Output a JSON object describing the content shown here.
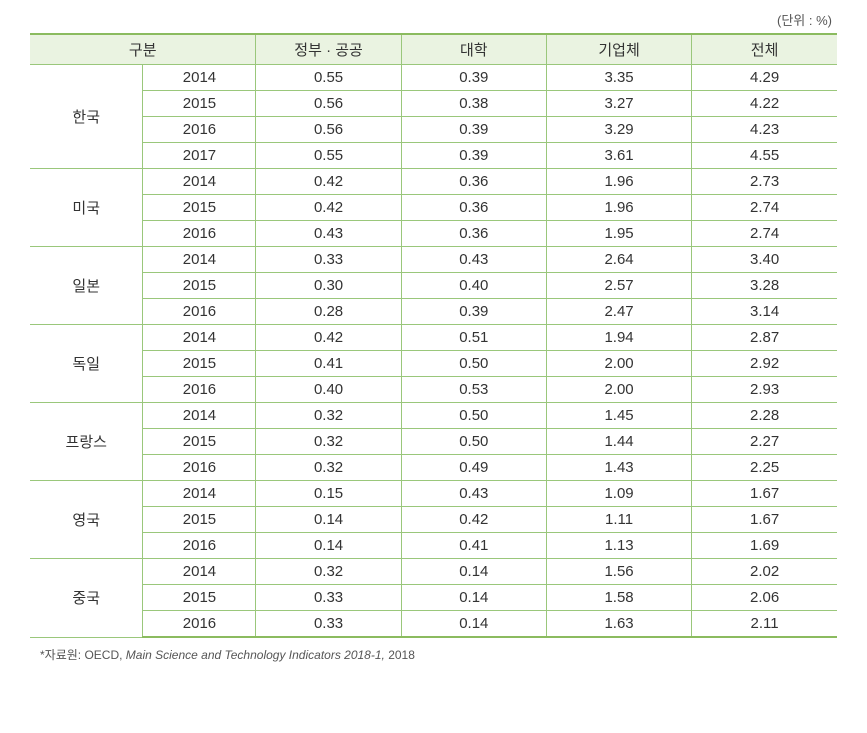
{
  "unit_label": "(단위 : %)",
  "header": {
    "category": "구분",
    "gov_public": "정부 · 공공",
    "university": "대학",
    "enterprise": "기업체",
    "total": "전체"
  },
  "countries": [
    {
      "name": "한국",
      "rows": [
        {
          "year": "2014",
          "gov": "0.55",
          "uni": "0.39",
          "ent": "3.35",
          "tot": "4.29"
        },
        {
          "year": "2015",
          "gov": "0.56",
          "uni": "0.38",
          "ent": "3.27",
          "tot": "4.22"
        },
        {
          "year": "2016",
          "gov": "0.56",
          "uni": "0.39",
          "ent": "3.29",
          "tot": "4.23"
        },
        {
          "year": "2017",
          "gov": "0.55",
          "uni": "0.39",
          "ent": "3.61",
          "tot": "4.55"
        }
      ]
    },
    {
      "name": "미국",
      "rows": [
        {
          "year": "2014",
          "gov": "0.42",
          "uni": "0.36",
          "ent": "1.96",
          "tot": "2.73"
        },
        {
          "year": "2015",
          "gov": "0.42",
          "uni": "0.36",
          "ent": "1.96",
          "tot": "2.74"
        },
        {
          "year": "2016",
          "gov": "0.43",
          "uni": "0.36",
          "ent": "1.95",
          "tot": "2.74"
        }
      ]
    },
    {
      "name": "일본",
      "rows": [
        {
          "year": "2014",
          "gov": "0.33",
          "uni": "0.43",
          "ent": "2.64",
          "tot": "3.40"
        },
        {
          "year": "2015",
          "gov": "0.30",
          "uni": "0.40",
          "ent": "2.57",
          "tot": "3.28"
        },
        {
          "year": "2016",
          "gov": "0.28",
          "uni": "0.39",
          "ent": "2.47",
          "tot": "3.14"
        }
      ]
    },
    {
      "name": "독일",
      "rows": [
        {
          "year": "2014",
          "gov": "0.42",
          "uni": "0.51",
          "ent": "1.94",
          "tot": "2.87"
        },
        {
          "year": "2015",
          "gov": "0.41",
          "uni": "0.50",
          "ent": "2.00",
          "tot": "2.92"
        },
        {
          "year": "2016",
          "gov": "0.40",
          "uni": "0.53",
          "ent": "2.00",
          "tot": "2.93"
        }
      ]
    },
    {
      "name": "프랑스",
      "rows": [
        {
          "year": "2014",
          "gov": "0.32",
          "uni": "0.50",
          "ent": "1.45",
          "tot": "2.28"
        },
        {
          "year": "2015",
          "gov": "0.32",
          "uni": "0.50",
          "ent": "1.44",
          "tot": "2.27"
        },
        {
          "year": "2016",
          "gov": "0.32",
          "uni": "0.49",
          "ent": "1.43",
          "tot": "2.25"
        }
      ]
    },
    {
      "name": "영국",
      "rows": [
        {
          "year": "2014",
          "gov": "0.15",
          "uni": "0.43",
          "ent": "1.09",
          "tot": "1.67"
        },
        {
          "year": "2015",
          "gov": "0.14",
          "uni": "0.42",
          "ent": "1.11",
          "tot": "1.67"
        },
        {
          "year": "2016",
          "gov": "0.14",
          "uni": "0.41",
          "ent": "1.13",
          "tot": "1.69"
        }
      ]
    },
    {
      "name": "중국",
      "rows": [
        {
          "year": "2014",
          "gov": "0.32",
          "uni": "0.14",
          "ent": "1.56",
          "tot": "2.02"
        },
        {
          "year": "2015",
          "gov": "0.33",
          "uni": "0.14",
          "ent": "1.58",
          "tot": "2.06"
        },
        {
          "year": "2016",
          "gov": "0.33",
          "uni": "0.14",
          "ent": "1.63",
          "tot": "2.11"
        }
      ]
    }
  ],
  "source_prefix": "*자료원: OECD, ",
  "source_italic": "Main Science and Technology Indicators 2018-1, ",
  "source_suffix": "2018",
  "styles": {
    "border_color": "#9ac77b",
    "header_bg": "#eaf3e1",
    "header_border_top": "#8bbb5f",
    "text_color": "#333333",
    "background": "#ffffff",
    "font_size_body": 15,
    "font_size_unit": 13,
    "font_size_source": 12,
    "table_type": "table"
  }
}
